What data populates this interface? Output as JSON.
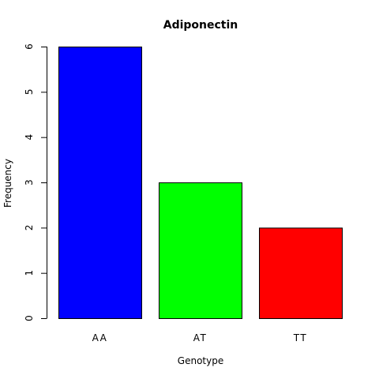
{
  "chart_data": {
    "type": "bar",
    "title": "Adiponectin",
    "xlabel": "Genotype",
    "ylabel": "Frequency",
    "categories": [
      "AA",
      "AT",
      "TT"
    ],
    "values": [
      6,
      3,
      2
    ],
    "bar_colors": [
      "#0000ff",
      "#00ff00",
      "#ff0000"
    ],
    "ylim": [
      0,
      6
    ],
    "yticks": [
      0,
      1,
      2,
      3,
      4,
      5,
      6
    ],
    "grid": false,
    "legend": "none"
  }
}
